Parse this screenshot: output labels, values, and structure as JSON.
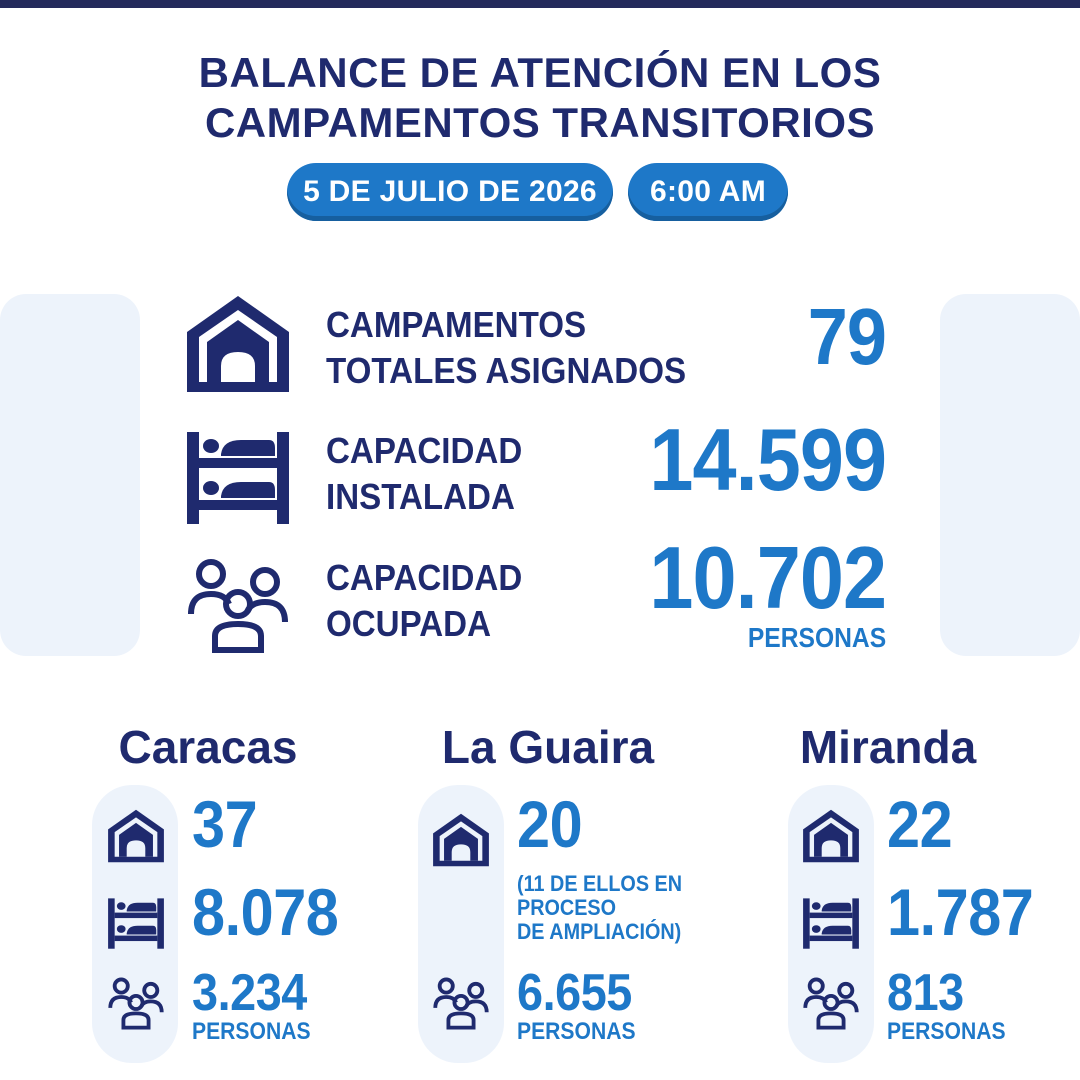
{
  "header": {
    "title_line1": "BALANCE DE ATENCIÓN EN LOS",
    "title_line2": "CAMPAMENTOS TRANSITORIOS",
    "date": "5 DE JULIO DE 2026",
    "time": "6:00 AM"
  },
  "summary": {
    "campamentos": {
      "label_line1": "CAMPAMENTOS",
      "label_line2": "TOTALES ASIGNADOS",
      "value": "79",
      "icon": "house-icon"
    },
    "capacidad_instalada": {
      "label_line1": "CAPACIDAD",
      "label_line2": "INSTALADA",
      "value": "14.599",
      "icon": "bunk-bed-icon"
    },
    "capacidad_ocupada": {
      "label_line1": "CAPACIDAD",
      "label_line2": "OCUPADA",
      "value": "10.702",
      "unit": "PERSONAS",
      "icon": "people-group-icon"
    }
  },
  "regions": [
    {
      "name": "Caracas",
      "campamentos": "37",
      "capacidad_instalada": "8.078",
      "capacidad_ocupada": "3.234",
      "unit": "PERSONAS"
    },
    {
      "name": "La Guaira",
      "campamentos": "20",
      "note_line1": "(11 DE ELLOS EN",
      "note_line2": "PROCESO",
      "note_line3": "DE AMPLIACIÓN)",
      "capacidad_ocupada": "6.655",
      "unit": "PERSONAS"
    },
    {
      "name": "Miranda",
      "campamentos": "22",
      "capacidad_instalada": "1.787",
      "capacidad_ocupada": "813",
      "unit": "PERSONAS"
    }
  ],
  "colors": {
    "navy": "#1f2a6e",
    "blue": "#1e78c8",
    "panel": "#edf3fb"
  }
}
